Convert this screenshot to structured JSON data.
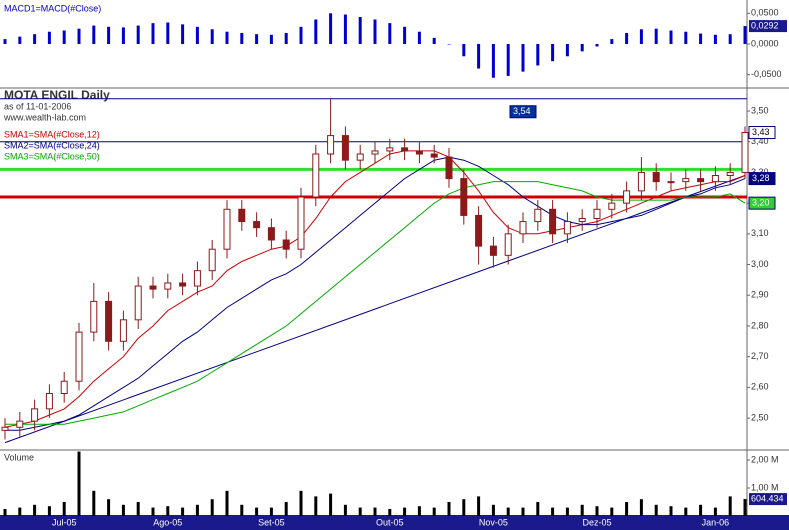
{
  "chart_data": [
    {
      "type": "bar",
      "title": "MACD1=MACD(#Close)",
      "color": "#0000cc",
      "values": [
        0.008,
        0.012,
        0.016,
        0.02,
        0.022,
        0.025,
        0.03,
        0.028,
        0.027,
        0.03,
        0.034,
        0.035,
        0.032,
        0.028,
        0.024,
        0.02,
        0.018,
        0.016,
        0.015,
        0.018,
        0.028,
        0.04,
        0.05,
        0.048,
        0.044,
        0.04,
        0.034,
        0.028,
        0.02,
        0.01,
        0.0,
        -0.02,
        -0.04,
        -0.055,
        -0.052,
        -0.045,
        -0.035,
        -0.028,
        -0.02,
        -0.012,
        -0.004,
        0.008,
        0.018,
        0.024,
        0.025,
        0.022,
        0.02,
        0.017,
        0.015,
        0.016,
        0.0292
      ],
      "value_labels": [
        null,
        null,
        null,
        null,
        null,
        null,
        null,
        null,
        null,
        null,
        null,
        null,
        null,
        null,
        null,
        null,
        null,
        null,
        null,
        null,
        null,
        null,
        null,
        null,
        null,
        null,
        null,
        null,
        null,
        null,
        null,
        null,
        null,
        null,
        null,
        null,
        null,
        null,
        null,
        null,
        null,
        null,
        null,
        null,
        null,
        null,
        null,
        null,
        null,
        null,
        "0,0292"
      ],
      "ylim": [
        -0.0717,
        0.0717
      ],
      "yticks": [
        {
          "value": 0.05,
          "label": "0,0500"
        },
        {
          "value": 0,
          "label": "0,0000"
        },
        {
          "value": -0.05,
          "label": "-0,0500"
        }
      ]
    },
    {
      "type": "candlestick",
      "title": "MOTA ENGIL Daily",
      "subtitle": "as of 11-01-2006",
      "source": "www.wealth-lab.com",
      "color": "#8b1a1a",
      "open": [
        2.46,
        2.47,
        2.49,
        2.53,
        2.58,
        2.62,
        2.78,
        2.88,
        2.75,
        2.82,
        2.93,
        2.92,
        2.94,
        2.93,
        2.98,
        3.05,
        3.18,
        3.14,
        3.12,
        3.08,
        3.05,
        3.22,
        3.36,
        3.42,
        3.34,
        3.36,
        3.37,
        3.38,
        3.37,
        3.36,
        3.35,
        3.28,
        3.16,
        3.06,
        3.03,
        3.1,
        3.14,
        3.18,
        3.1,
        3.14,
        3.15,
        3.18,
        3.2,
        3.24,
        3.3,
        3.27,
        3.27,
        3.28,
        3.27,
        3.29,
        3.3
      ],
      "high": [
        2.5,
        2.52,
        2.56,
        2.61,
        2.65,
        2.81,
        2.94,
        2.91,
        2.85,
        2.96,
        2.96,
        2.97,
        2.97,
        3.01,
        3.08,
        3.21,
        3.21,
        3.17,
        3.15,
        3.11,
        3.25,
        3.39,
        3.54,
        3.45,
        3.39,
        3.4,
        3.41,
        3.41,
        3.4,
        3.39,
        3.38,
        3.31,
        3.19,
        3.09,
        3.13,
        3.17,
        3.21,
        3.21,
        3.17,
        3.18,
        3.21,
        3.23,
        3.27,
        3.35,
        3.33,
        3.3,
        3.31,
        3.31,
        3.32,
        3.33,
        3.45
      ],
      "low": [
        2.43,
        2.44,
        2.46,
        2.5,
        2.55,
        2.59,
        2.75,
        2.72,
        2.72,
        2.79,
        2.89,
        2.89,
        2.9,
        2.9,
        2.95,
        3.02,
        3.11,
        3.09,
        3.05,
        3.02,
        3.02,
        3.19,
        3.33,
        3.31,
        3.31,
        3.33,
        3.34,
        3.34,
        3.33,
        3.33,
        3.25,
        3.13,
        3.0,
        2.99,
        3.0,
        3.07,
        3.11,
        3.07,
        3.07,
        3.11,
        3.12,
        3.15,
        3.17,
        3.21,
        3.24,
        3.24,
        3.24,
        3.24,
        3.24,
        3.26,
        3.28
      ],
      "close": [
        2.47,
        2.49,
        2.53,
        2.58,
        2.62,
        2.78,
        2.88,
        2.75,
        2.82,
        2.93,
        2.92,
        2.94,
        2.93,
        2.98,
        3.05,
        3.18,
        3.14,
        3.12,
        3.08,
        3.05,
        3.22,
        3.36,
        3.42,
        3.34,
        3.36,
        3.37,
        3.38,
        3.37,
        3.36,
        3.35,
        3.28,
        3.16,
        3.06,
        3.03,
        3.1,
        3.14,
        3.18,
        3.1,
        3.14,
        3.15,
        3.18,
        3.2,
        3.24,
        3.3,
        3.27,
        3.27,
        3.28,
        3.27,
        3.29,
        3.3,
        3.43
      ],
      "series": [
        {
          "name": "SMA1=SMA(#Close,12)",
          "color": "#cc0000",
          "values": [
            2.47,
            2.48,
            2.49,
            2.51,
            2.53,
            2.57,
            2.62,
            2.66,
            2.7,
            2.76,
            2.8,
            2.85,
            2.88,
            2.91,
            2.93,
            2.98,
            3.01,
            3.03,
            3.05,
            3.06,
            3.09,
            3.15,
            3.22,
            3.27,
            3.3,
            3.33,
            3.36,
            3.37,
            3.37,
            3.37,
            3.35,
            3.3,
            3.24,
            3.17,
            3.12,
            3.1,
            3.1,
            3.11,
            3.12,
            3.13,
            3.14,
            3.16,
            3.18,
            3.2,
            3.22,
            3.24,
            3.25,
            3.26,
            3.27,
            3.27,
            3.29
          ]
        },
        {
          "name": "SMA2=SMA(#Close,24)",
          "color": "#000080",
          "values": [
            2.46,
            2.46,
            2.47,
            2.48,
            2.49,
            2.51,
            2.54,
            2.57,
            2.6,
            2.63,
            2.67,
            2.71,
            2.75,
            2.78,
            2.82,
            2.86,
            2.89,
            2.92,
            2.95,
            2.97,
            3.0,
            3.04,
            3.08,
            3.12,
            3.16,
            3.2,
            3.24,
            3.28,
            3.31,
            3.34,
            3.35,
            3.34,
            3.32,
            3.29,
            3.26,
            3.22,
            3.19,
            3.16,
            3.14,
            3.13,
            3.13,
            3.14,
            3.15,
            3.16,
            3.18,
            3.2,
            3.22,
            3.23,
            3.25,
            3.26,
            3.28
          ]
        },
        {
          "name": "SMA3=SMA(#Close,50)",
          "color": "#00aa00",
          "values": [
            2.48,
            2.48,
            2.48,
            2.48,
            2.48,
            2.49,
            2.5,
            2.51,
            2.52,
            2.54,
            2.56,
            2.58,
            2.6,
            2.62,
            2.65,
            2.68,
            2.71,
            2.74,
            2.77,
            2.8,
            2.84,
            2.88,
            2.92,
            2.96,
            3.0,
            3.04,
            3.08,
            3.12,
            3.16,
            3.2,
            3.23,
            3.25,
            3.26,
            3.27,
            3.27,
            3.27,
            3.27,
            3.26,
            3.25,
            3.24,
            3.22,
            3.21,
            3.21,
            3.21,
            3.21,
            3.21,
            3.22,
            3.22,
            3.22,
            3.23,
            3.2
          ]
        }
      ],
      "hlines": [
        {
          "value": 3.54,
          "color": "#000080"
        },
        {
          "value": 3.4,
          "color": "#000080"
        },
        {
          "value": 3.31,
          "color": "#33dd33"
        },
        {
          "value": 3.22,
          "color": "#cc0000"
        }
      ],
      "trendline": {
        "color": "#000080",
        "values": [
          2.42,
          3.29
        ]
      },
      "price_labels": [
        {
          "value": 3.54,
          "label": "3,54",
          "color": "#003399"
        },
        {
          "value": 3.43,
          "label": "3,43",
          "color": "#ffffff"
        },
        {
          "value": 3.28,
          "label": "3,28",
          "color": "#000080"
        },
        {
          "value": 3.2,
          "label": "3,20",
          "color": "#33cc33"
        }
      ],
      "ylim": [
        2.396,
        3.575
      ],
      "yticks": [
        {
          "value": 2.5,
          "label": "2,50"
        },
        {
          "value": 2.6,
          "label": "2,60"
        },
        {
          "value": 2.7,
          "label": "2,70"
        },
        {
          "value": 2.8,
          "label": "2,80"
        },
        {
          "value": 2.9,
          "label": "2,90"
        },
        {
          "value": 3.0,
          "label": "3,00"
        },
        {
          "value": 3.1,
          "label": "3,10"
        },
        {
          "value": 3.2,
          "label": "3,20"
        },
        {
          "value": 3.3,
          "label": "3,30"
        },
        {
          "value": 3.4,
          "label": "3,40"
        },
        {
          "value": 3.5,
          "label": "3,50"
        }
      ]
    },
    {
      "type": "bar",
      "title": "Volume",
      "color": "#000000",
      "values": [
        0.25,
        0.3,
        0.4,
        0.35,
        0.5,
        2.3,
        0.9,
        0.6,
        0.4,
        0.5,
        0.3,
        0.35,
        0.3,
        0.4,
        0.6,
        0.9,
        0.4,
        0.3,
        0.3,
        0.5,
        0.9,
        0.7,
        0.8,
        0.4,
        0.3,
        0.3,
        0.25,
        0.3,
        0.35,
        0.3,
        0.5,
        0.6,
        0.7,
        0.4,
        0.3,
        0.3,
        0.5,
        0.3,
        0.3,
        0.4,
        0.35,
        0.3,
        0.5,
        0.6,
        0.4,
        0.35,
        0.3,
        0.4,
        0.3,
        0.7,
        0.604434
      ],
      "value_labels": [
        null,
        null,
        null,
        null,
        null,
        null,
        null,
        null,
        null,
        null,
        null,
        null,
        null,
        null,
        null,
        null,
        null,
        null,
        null,
        null,
        null,
        null,
        null,
        null,
        null,
        null,
        null,
        null,
        null,
        null,
        null,
        null,
        null,
        null,
        null,
        null,
        null,
        null,
        null,
        null,
        null,
        null,
        null,
        null,
        null,
        null,
        null,
        null,
        null,
        null,
        "604.434"
      ],
      "categories": [
        null,
        null,
        null,
        null,
        "Jul-05",
        null,
        null,
        null,
        null,
        null,
        null,
        "Ago-05",
        null,
        null,
        null,
        null,
        null,
        null,
        "Set-05",
        null,
        null,
        null,
        null,
        null,
        null,
        null,
        "Out-05",
        null,
        null,
        null,
        null,
        null,
        null,
        "Nov-05",
        null,
        null,
        null,
        null,
        null,
        null,
        "Dez-05",
        null,
        null,
        null,
        null,
        null,
        null,
        null,
        "Jan-06",
        null,
        null
      ],
      "ylim": [
        0,
        2.357
      ],
      "yticks": [
        {
          "value": 1,
          "label": "1,00 M"
        },
        {
          "value": 2,
          "label": "2,00 M"
        }
      ]
    }
  ]
}
